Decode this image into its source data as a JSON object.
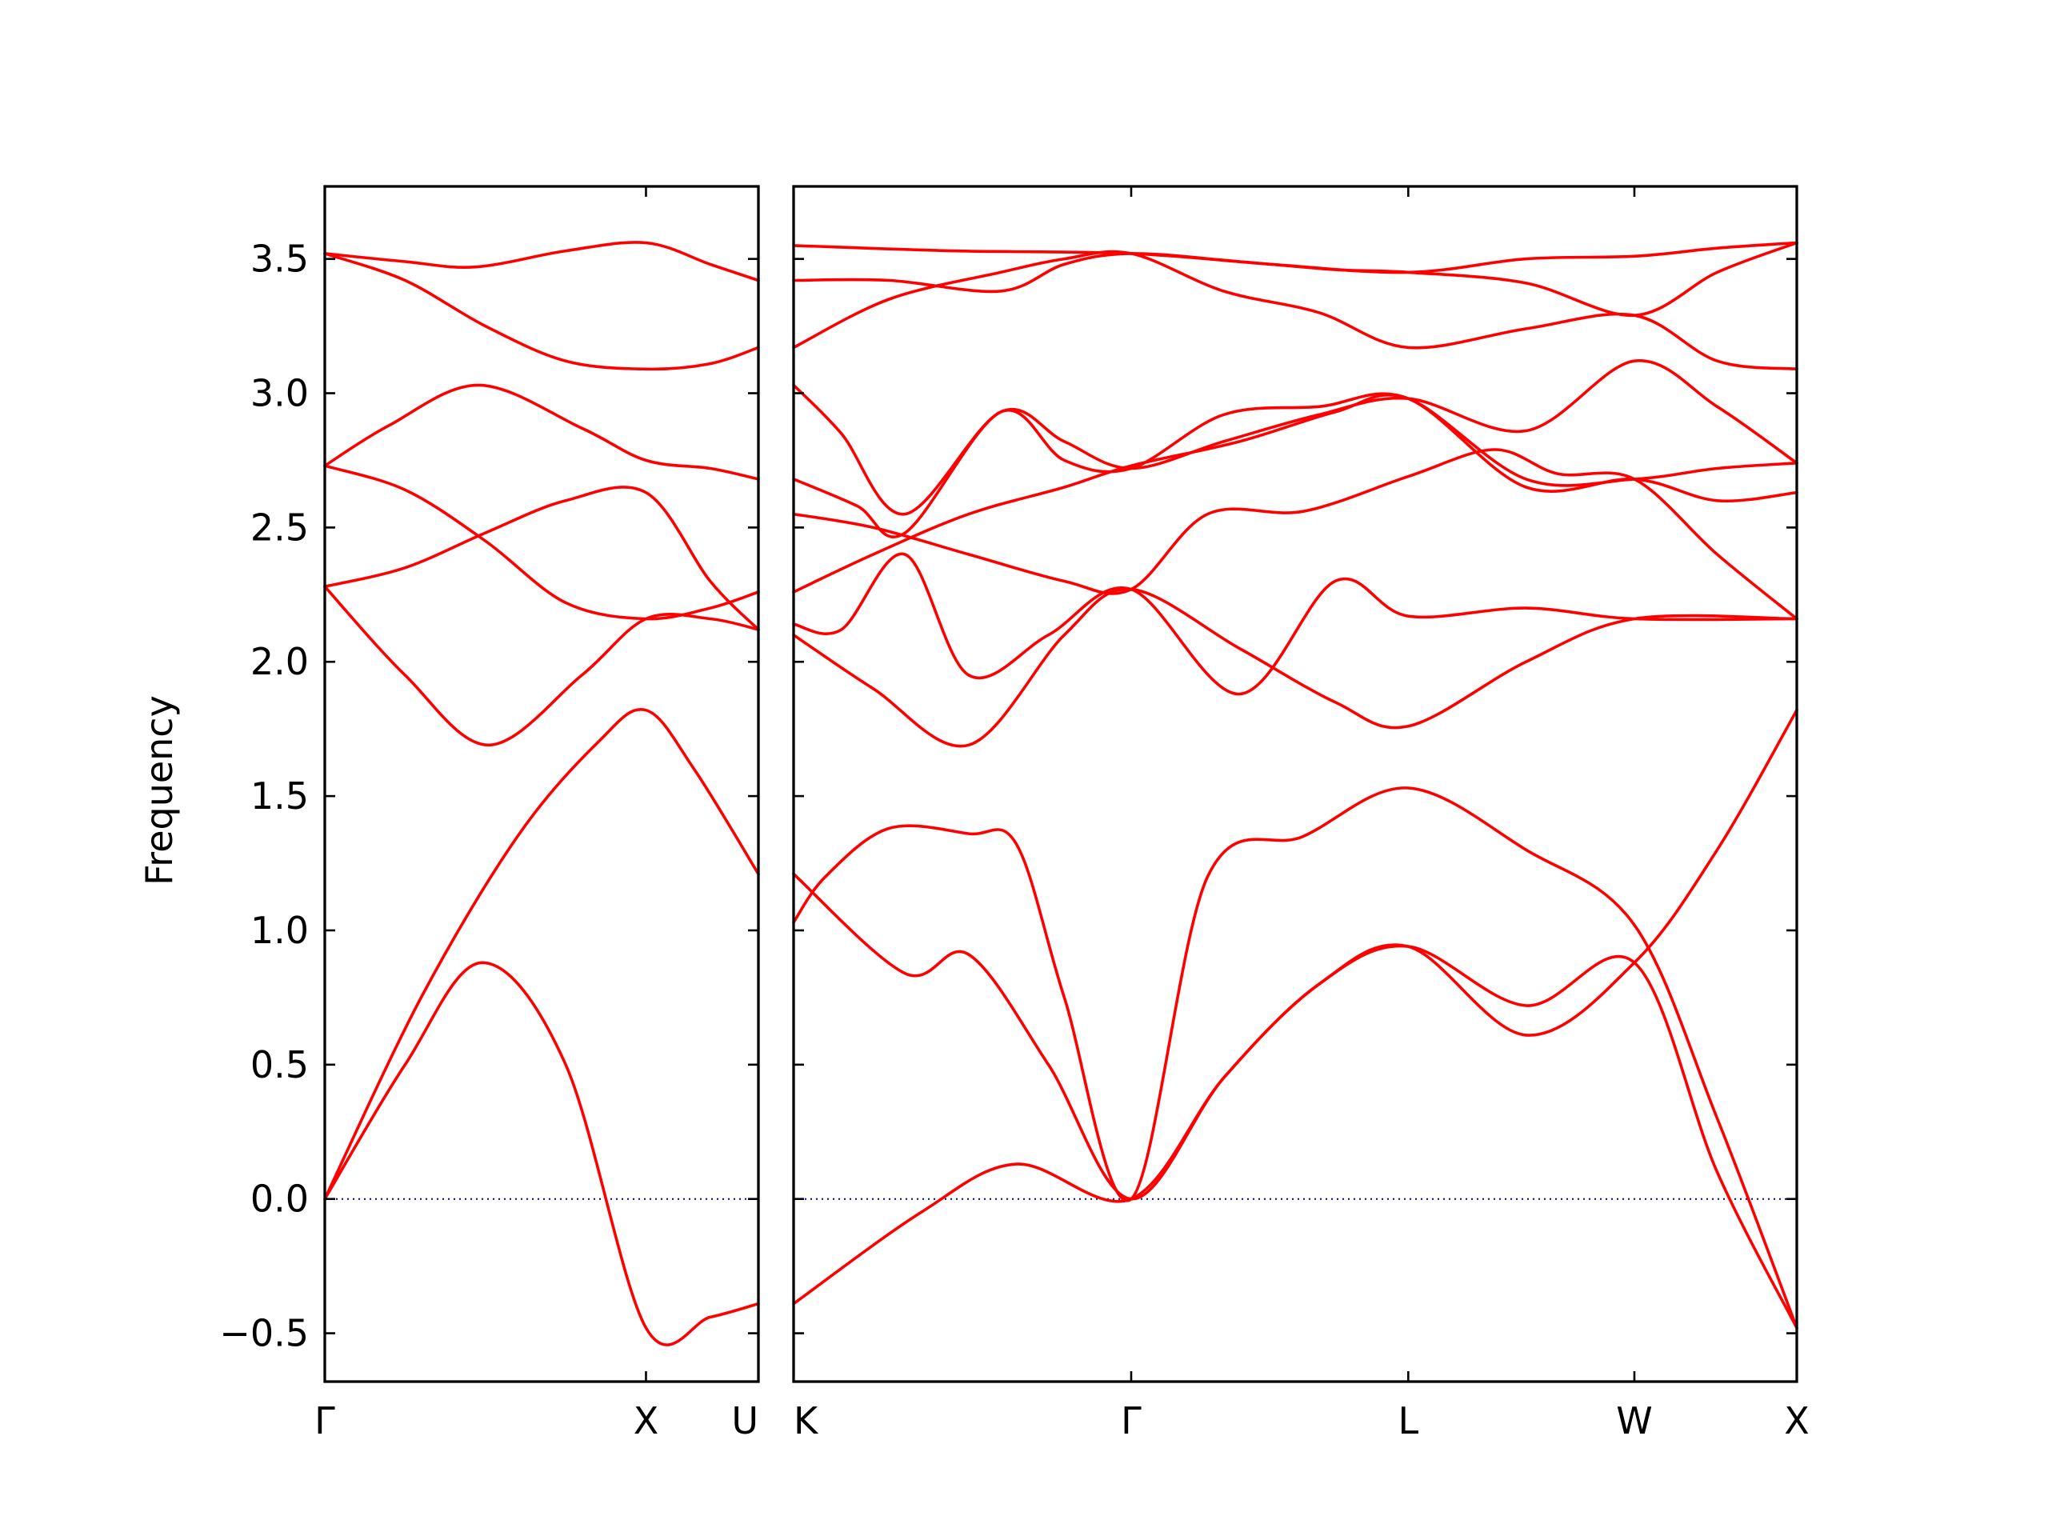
{
  "chart_data": {
    "type": "line",
    "title": "",
    "xlabel": "",
    "ylabel": "Frequency",
    "ylim": [
      -0.68,
      3.77
    ],
    "yticks": [
      -0.5,
      0.0,
      0.5,
      1.0,
      1.5,
      2.0,
      2.5,
      3.0,
      3.5
    ],
    "ytick_labels": [
      "−0.5",
      "0.0",
      "0.5",
      "1.0",
      "1.5",
      "2.0",
      "2.5",
      "3.0",
      "3.5"
    ],
    "grid": false,
    "colors": {
      "band": "#ff0000",
      "zero_line": "#00008b",
      "axes": "#000000"
    },
    "panels": [
      {
        "name": "left",
        "xlim": [
          0,
          1.35
        ],
        "xticks": [
          0,
          1.0,
          1.35
        ],
        "xtick_labels": [
          "Γ",
          "X",
          "U"
        ],
        "series": [
          {
            "x": [
              0,
              0.25,
              0.49,
              0.75,
              1.0,
              1.2,
              1.35
            ],
            "values": [
              0.0,
              0.5,
              0.88,
              0.5,
              -0.48,
              -0.44,
              -0.39
            ]
          },
          {
            "x": [
              0,
              0.3,
              0.6,
              0.85,
              1.0,
              1.15,
              1.35
            ],
            "values": [
              0.0,
              0.75,
              1.35,
              1.7,
              1.82,
              1.6,
              1.21
            ]
          },
          {
            "x": [
              0,
              0.25,
              0.51,
              0.8,
              1.0,
              1.2,
              1.35
            ],
            "values": [
              2.28,
              1.95,
              1.69,
              1.95,
              2.16,
              2.16,
              2.12
            ]
          },
          {
            "x": [
              0,
              0.25,
              0.5,
              0.75,
              1.0,
              1.2,
              1.35
            ],
            "values": [
              2.28,
              2.35,
              2.48,
              2.6,
              2.63,
              2.3,
              2.12
            ]
          },
          {
            "x": [
              0,
              0.25,
              0.5,
              0.75,
              1.0,
              1.2,
              1.35
            ],
            "values": [
              2.73,
              2.64,
              2.45,
              2.22,
              2.16,
              2.2,
              2.26
            ]
          },
          {
            "x": [
              0,
              0.2,
              0.48,
              0.8,
              1.0,
              1.2,
              1.35
            ],
            "values": [
              2.73,
              2.88,
              3.03,
              2.87,
              2.75,
              2.72,
              2.68
            ]
          },
          {
            "x": [
              0,
              0.25,
              0.5,
              0.75,
              1.0,
              1.2,
              1.35
            ],
            "values": [
              3.52,
              3.42,
              3.25,
              3.12,
              3.09,
              3.11,
              3.17
            ]
          },
          {
            "x": [
              0,
              0.25,
              0.47,
              0.75,
              1.0,
              1.2,
              1.35
            ],
            "values": [
              3.52,
              3.49,
              3.47,
              3.53,
              3.56,
              3.48,
              3.42
            ]
          }
        ]
      },
      {
        "name": "right",
        "xlim": [
          0,
          3.15
        ],
        "xticks": [
          0,
          1.06,
          1.93,
          2.64,
          3.15
        ],
        "xtick_labels": [
          "K",
          "Γ",
          "L",
          "W",
          "X"
        ],
        "series": [
          {
            "x": [
              0,
              0.4,
              0.7,
              1.06,
              1.35,
              1.65,
              1.93,
              2.3,
              2.64,
              2.9,
              3.15
            ],
            "values": [
              -0.39,
              -0.05,
              0.13,
              0.0,
              0.45,
              0.8,
              0.94,
              0.72,
              0.88,
              0.1,
              -0.48
            ]
          },
          {
            "x": [
              0,
              0.35,
              0.55,
              0.8,
              1.06,
              1.35,
              1.65,
              1.93,
              2.3,
              2.64,
              2.9,
              3.15
            ],
            "values": [
              1.21,
              0.84,
              0.91,
              0.5,
              0.0,
              0.45,
              0.8,
              0.94,
              0.61,
              0.88,
              1.3,
              1.82
            ]
          },
          {
            "x": [
              0,
              0.1,
              0.3,
              0.55,
              0.7,
              0.85,
              1.06,
              1.3,
              1.6,
              1.93,
              2.3,
              2.64,
              2.9,
              3.15
            ],
            "values": [
              1.03,
              1.2,
              1.38,
              1.36,
              1.32,
              0.75,
              0.0,
              1.2,
              1.35,
              1.53,
              1.3,
              1.02,
              0.3,
              -0.48
            ]
          },
          {
            "x": [
              0,
              0.25,
              0.55,
              0.85,
              1.06,
              1.4,
              1.7,
              1.93,
              2.3,
              2.64,
              3.15
            ],
            "values": [
              2.1,
              1.9,
              1.69,
              2.1,
              2.27,
              2.05,
              1.85,
              1.76,
              2.0,
              2.16,
              2.16
            ]
          },
          {
            "x": [
              0,
              0.15,
              0.35,
              0.55,
              0.8,
              1.06,
              1.4,
              1.7,
              1.93,
              2.3,
              2.64,
              3.15
            ],
            "values": [
              2.14,
              2.12,
              2.4,
              1.95,
              2.1,
              2.27,
              1.88,
              2.3,
              2.17,
              2.2,
              2.16,
              2.16
            ]
          },
          {
            "x": [
              0,
              0.25,
              0.55,
              0.85,
              1.06,
              1.4,
              1.7,
              1.93,
              2.3,
              2.64,
              2.9,
              3.15
            ],
            "values": [
              2.26,
              2.4,
              2.55,
              2.65,
              2.73,
              2.82,
              2.93,
              2.98,
              2.68,
              2.68,
              2.72,
              2.74
            ]
          },
          {
            "x": [
              0,
              0.25,
              0.55,
              0.85,
              1.06,
              1.3,
              1.6,
              1.93,
              2.2,
              2.4,
              2.64,
              2.9,
              3.15
            ],
            "values": [
              2.55,
              2.5,
              2.4,
              2.3,
              2.27,
              2.55,
              2.56,
              2.69,
              2.79,
              2.7,
              2.68,
              2.4,
              2.16
            ]
          },
          {
            "x": [
              0,
              0.2,
              0.35,
              0.65,
              0.85,
              1.06,
              1.35,
              1.65,
              1.93,
              2.3,
              2.64,
              2.9,
              3.15
            ],
            "values": [
              2.68,
              2.58,
              2.48,
              2.93,
              2.75,
              2.72,
              2.92,
              2.95,
              2.98,
              2.65,
              2.68,
              2.6,
              2.63
            ]
          },
          {
            "x": [
              0,
              0.15,
              0.35,
              0.65,
              0.85,
              1.06,
              1.35,
              1.65,
              1.93,
              2.3,
              2.64,
              2.9,
              3.15
            ],
            "values": [
              3.03,
              2.85,
              2.55,
              2.93,
              2.82,
              2.72,
              2.82,
              2.92,
              2.98,
              2.86,
              3.12,
              2.95,
              2.74
            ]
          },
          {
            "x": [
              0,
              0.3,
              0.65,
              0.85,
              1.06,
              1.35,
              1.65,
              1.93,
              2.3,
              2.64,
              2.9,
              3.15
            ],
            "values": [
              3.17,
              3.35,
              3.45,
              3.5,
              3.52,
              3.38,
              3.3,
              3.17,
              3.24,
              3.29,
              3.12,
              3.09
            ]
          },
          {
            "x": [
              0,
              0.3,
              0.65,
              0.85,
              1.06,
              1.4,
              1.7,
              1.93,
              2.3,
              2.64,
              2.9,
              3.15
            ],
            "values": [
              3.42,
              3.42,
              3.38,
              3.48,
              3.52,
              3.49,
              3.46,
              3.45,
              3.41,
              3.29,
              3.45,
              3.56
            ]
          },
          {
            "x": [
              0,
              0.5,
              1.06,
              1.5,
              1.93,
              2.3,
              2.64,
              2.9,
              3.15
            ],
            "values": [
              3.55,
              3.53,
              3.52,
              3.48,
              3.45,
              3.5,
              3.51,
              3.54,
              3.56
            ]
          }
        ]
      }
    ]
  }
}
